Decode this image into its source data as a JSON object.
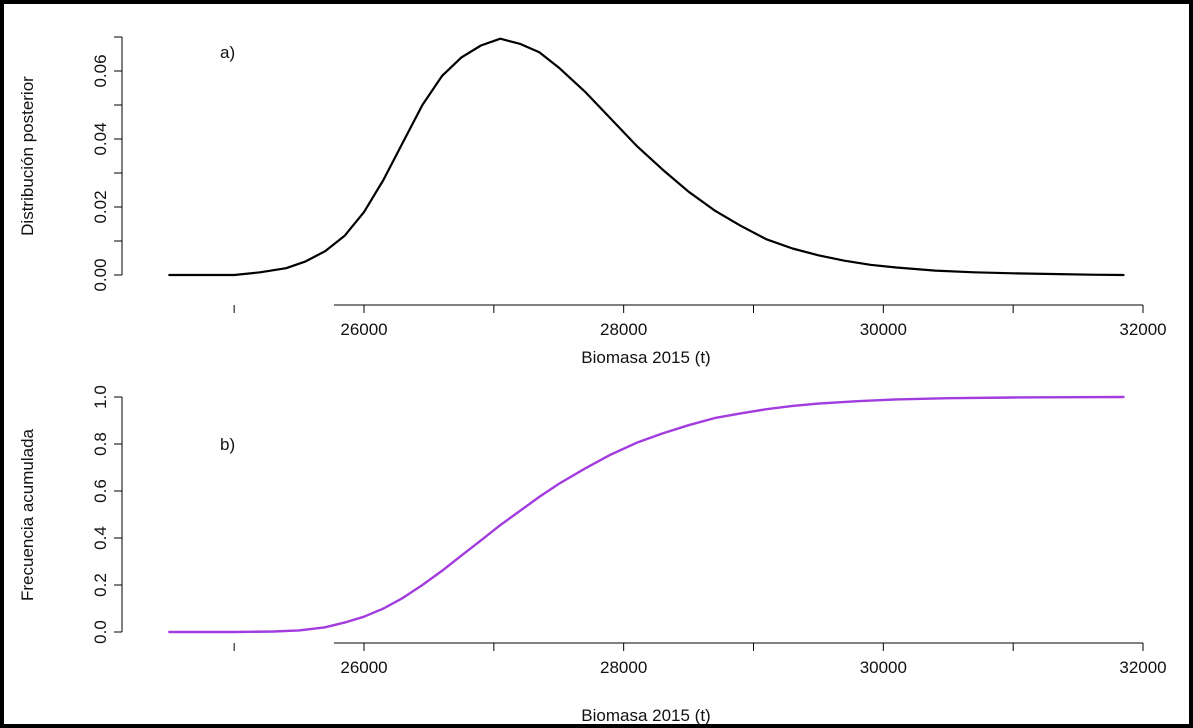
{
  "chart_data": [
    {
      "type": "line",
      "panel_label": "a)",
      "xlabel": "Biomasa 2015 (t)",
      "ylabel": "Distribución posterior",
      "xlim": [
        24500,
        32000
      ],
      "ylim": [
        0.0,
        0.07
      ],
      "x_ticks": [
        26000,
        28000,
        30000,
        32000
      ],
      "x_tick_labels": [
        "26000",
        "28000",
        "30000",
        "32000"
      ],
      "y_ticks": [
        0.0,
        0.02,
        0.04,
        0.06
      ],
      "y_tick_labels": [
        "0.00",
        "0.02",
        "0.04",
        "0.06"
      ],
      "color": "#000000",
      "grid": false,
      "series": [
        {
          "x": [
            24500,
            25000,
            25200,
            25400,
            25550,
            25700,
            25850,
            26000,
            26150,
            26300,
            26450,
            26600,
            26750,
            26900,
            27050,
            27200,
            27350,
            27500,
            27700,
            27900,
            28100,
            28300,
            28500,
            28700,
            28900,
            29100,
            29300,
            29500,
            29700,
            29900,
            30100,
            30400,
            30700,
            31000,
            31300,
            31600,
            31850
          ],
          "y": [
            0.0,
            0.0,
            0.0008,
            0.002,
            0.004,
            0.007,
            0.0115,
            0.0185,
            0.028,
            0.039,
            0.05,
            0.0585,
            0.064,
            0.0675,
            0.0695,
            0.068,
            0.0655,
            0.061,
            0.054,
            0.046,
            0.038,
            0.031,
            0.0245,
            0.019,
            0.0145,
            0.0105,
            0.0078,
            0.0058,
            0.0042,
            0.003,
            0.0022,
            0.0013,
            0.0008,
            0.0005,
            0.0003,
            0.0001,
            0.0
          ]
        }
      ]
    },
    {
      "type": "line",
      "panel_label": "b)",
      "xlabel": "Biomasa 2015 (t)",
      "ylabel": "Frecuencia acumulada",
      "xlim": [
        24500,
        32000
      ],
      "ylim": [
        0.0,
        1.0
      ],
      "x_ticks": [
        26000,
        28000,
        30000,
        32000
      ],
      "x_tick_labels": [
        "26000",
        "28000",
        "30000",
        "32000"
      ],
      "y_ticks": [
        0.0,
        0.2,
        0.4,
        0.6,
        0.8,
        1.0
      ],
      "y_tick_labels": [
        "0.0",
        "0.2",
        "0.4",
        "0.6",
        "0.8",
        "1.0"
      ],
      "color": "#a23cde",
      "grid": false,
      "series": [
        {
          "x": [
            24500,
            25000,
            25300,
            25500,
            25700,
            25850,
            26000,
            26150,
            26300,
            26450,
            26600,
            26750,
            26900,
            27050,
            27200,
            27350,
            27500,
            27700,
            27900,
            28100,
            28300,
            28500,
            28700,
            28900,
            29100,
            29300,
            29500,
            29800,
            30100,
            30500,
            31000,
            31500,
            31850
          ],
          "y": [
            0.0,
            0.0,
            0.002,
            0.007,
            0.02,
            0.04,
            0.065,
            0.1,
            0.145,
            0.2,
            0.26,
            0.325,
            0.39,
            0.455,
            0.515,
            0.575,
            0.63,
            0.695,
            0.755,
            0.805,
            0.845,
            0.88,
            0.91,
            0.93,
            0.948,
            0.962,
            0.972,
            0.982,
            0.99,
            0.995,
            0.998,
            0.999,
            1.0
          ]
        }
      ]
    }
  ]
}
